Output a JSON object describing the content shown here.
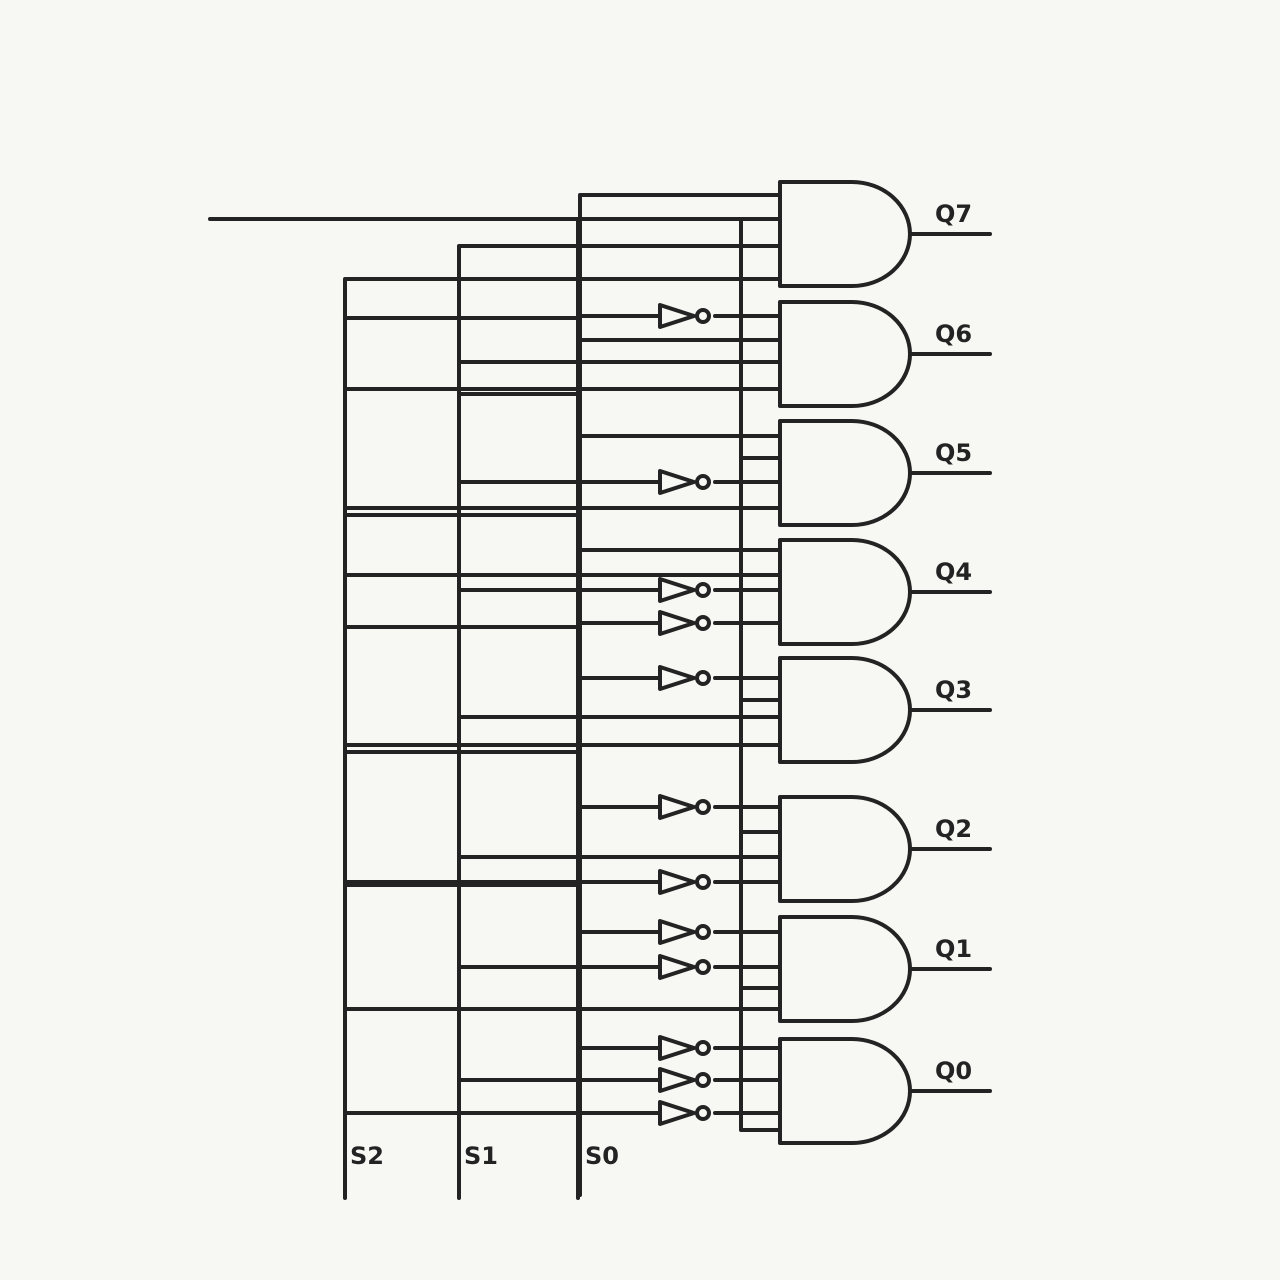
{
  "diagram": {
    "outputs": [
      {
        "label": "Q7",
        "select_inverted": [
          false,
          false,
          false
        ]
      },
      {
        "label": "Q6",
        "select_inverted": [
          false,
          false,
          true
        ]
      },
      {
        "label": "Q5",
        "select_inverted": [
          false,
          true,
          false
        ]
      },
      {
        "label": "Q4",
        "select_inverted": [
          false,
          true,
          true
        ]
      },
      {
        "label": "Q3",
        "select_inverted": [
          true,
          false,
          false
        ]
      },
      {
        "label": "Q2",
        "select_inverted": [
          true,
          false,
          true
        ]
      },
      {
        "label": "Q1",
        "select_inverted": [
          true,
          true,
          false
        ]
      },
      {
        "label": "Q0",
        "select_inverted": [
          true,
          true,
          true
        ]
      }
    ],
    "select_lines": [
      {
        "label": "S2"
      },
      {
        "label": "S1"
      },
      {
        "label": "S0"
      }
    ],
    "colors": {
      "ink": "#232323",
      "background": "#f7f8f3"
    }
  }
}
